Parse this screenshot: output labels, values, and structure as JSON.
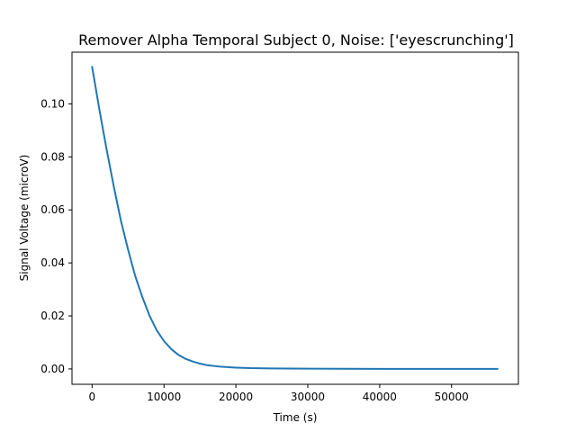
{
  "chart_data": {
    "type": "line",
    "title": "Remover Alpha Temporal Subject 0, Noise: ['eyescrunching']",
    "xlabel": "Time (s)",
    "ylabel": "Signal Voltage (microV)",
    "xlim": [
      -2800,
      59300
    ],
    "ylim": [
      -0.0058,
      0.1195
    ],
    "xticks": [
      0,
      10000,
      20000,
      30000,
      40000,
      50000
    ],
    "xtick_labels": [
      "0",
      "10000",
      "20000",
      "30000",
      "40000",
      "50000"
    ],
    "yticks": [
      0.0,
      0.02,
      0.04,
      0.06,
      0.08,
      0.1
    ],
    "ytick_labels": [
      "0.00",
      "0.02",
      "0.04",
      "0.06",
      "0.08",
      "0.10"
    ],
    "grid": false,
    "series": [
      {
        "color": "#1f77b4",
        "x": [
          0,
          1000,
          2000,
          3000,
          4000,
          5000,
          6000,
          7000,
          8000,
          9000,
          10000,
          11000,
          12000,
          13000,
          14000,
          15000,
          16000,
          18000,
          20000,
          22000,
          25000,
          30000,
          35000,
          40000,
          45000,
          50000,
          56400
        ],
        "y": [
          0.114,
          0.098,
          0.083,
          0.069,
          0.056,
          0.045,
          0.035,
          0.027,
          0.02,
          0.0145,
          0.0105,
          0.0075,
          0.0053,
          0.0038,
          0.0028,
          0.002,
          0.0014,
          0.0008,
          0.0005,
          0.0003,
          0.0002,
          0.0001,
          5e-05,
          3e-05,
          2e-05,
          1e-05,
          0.0
        ]
      }
    ]
  }
}
